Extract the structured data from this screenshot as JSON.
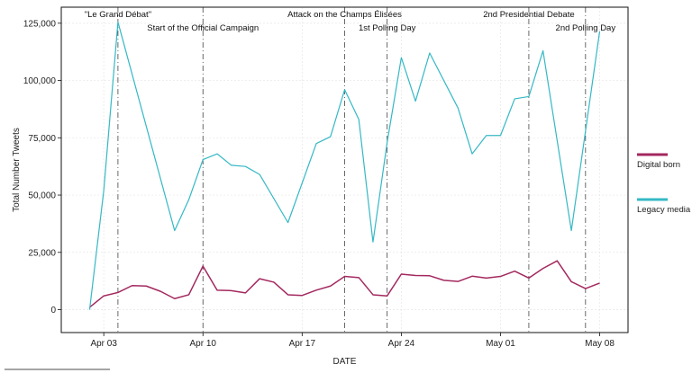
{
  "chart_data": {
    "type": "line",
    "title": "",
    "xlabel": "DATE",
    "ylabel": "Total Number Tweets",
    "x_tick_labels": [
      {
        "date": "2017-04-03",
        "label": "Apr 03"
      },
      {
        "date": "2017-04-10",
        "label": "Apr 10"
      },
      {
        "date": "2017-04-17",
        "label": "Apr 17"
      },
      {
        "date": "2017-04-24",
        "label": "Apr 24"
      },
      {
        "date": "2017-05-01",
        "label": "May 01"
      },
      {
        "date": "2017-05-08",
        "label": "May 08"
      }
    ],
    "y_ticks": [
      0,
      25000,
      50000,
      75000,
      100000,
      125000
    ],
    "y_tick_labels": [
      "0",
      "25,000",
      "50,000",
      "75,000",
      "100,000",
      "125,000"
    ],
    "xlim": [
      "2017-03-31",
      "2017-05-10"
    ],
    "ylim": [
      -10000,
      132000
    ],
    "grid": true,
    "legend_position": "right",
    "events": [
      {
        "date": "2017-04-04",
        "label": "\"Le Grand Débat\""
      },
      {
        "date": "2017-04-10",
        "label": "Start of the Official Campaign"
      },
      {
        "date": "2017-04-20",
        "label": "Attack on the Champs Élisées"
      },
      {
        "date": "2017-04-23",
        "label": "1st Polling Day"
      },
      {
        "date": "2017-05-03",
        "label": "2nd Presidential Debate"
      },
      {
        "date": "2017-05-07",
        "label": "2nd Polling Day"
      }
    ],
    "series": [
      {
        "name": "Digital born",
        "color": "#a3285f",
        "x": [
          "2017-04-02",
          "2017-04-03",
          "2017-04-04",
          "2017-04-05",
          "2017-04-06",
          "2017-04-07",
          "2017-04-08",
          "2017-04-09",
          "2017-04-10",
          "2017-04-11",
          "2017-04-12",
          "2017-04-13",
          "2017-04-14",
          "2017-04-15",
          "2017-04-16",
          "2017-04-17",
          "2017-04-18",
          "2017-04-19",
          "2017-04-20",
          "2017-04-21",
          "2017-04-22",
          "2017-04-23",
          "2017-04-24",
          "2017-04-25",
          "2017-04-26",
          "2017-04-27",
          "2017-04-28",
          "2017-04-29",
          "2017-04-30",
          "2017-05-01",
          "2017-05-02",
          "2017-05-03",
          "2017-05-04",
          "2017-05-05",
          "2017-05-06",
          "2017-05-07",
          "2017-05-08"
        ],
        "values": [
          1000,
          6000,
          7500,
          10500,
          10300,
          8000,
          4800,
          6500,
          19000,
          8500,
          8300,
          7300,
          13500,
          12000,
          6500,
          6200,
          8500,
          10300,
          14500,
          14000,
          6500,
          6000,
          15500,
          14900,
          14800,
          12800,
          12300,
          14600,
          13800,
          14500,
          16800,
          13800,
          18000,
          21300,
          12200,
          9200,
          11600
        ]
      },
      {
        "name": "Legacy media",
        "color": "#35b8c5",
        "x": [
          "2017-04-02",
          "2017-04-03",
          "2017-04-04",
          "2017-04-08",
          "2017-04-09",
          "2017-04-10",
          "2017-04-11",
          "2017-04-12",
          "2017-04-13",
          "2017-04-14",
          "2017-04-16",
          "2017-04-18",
          "2017-04-19",
          "2017-04-20",
          "2017-04-21",
          "2017-04-22",
          "2017-04-23",
          "2017-04-24",
          "2017-04-25",
          "2017-04-26",
          "2017-04-28",
          "2017-04-29",
          "2017-04-30",
          "2017-05-01",
          "2017-05-02",
          "2017-05-03",
          "2017-05-04",
          "2017-05-06",
          "2017-05-08"
        ],
        "values": [
          0,
          52000,
          125500,
          34500,
          48000,
          65500,
          68000,
          63000,
          62500,
          59000,
          38000,
          72500,
          75500,
          96000,
          83000,
          29500,
          73000,
          110000,
          91000,
          112000,
          88000,
          68000,
          76000,
          76000,
          92000,
          93000,
          113000,
          34500,
          121500
        ]
      }
    ]
  }
}
